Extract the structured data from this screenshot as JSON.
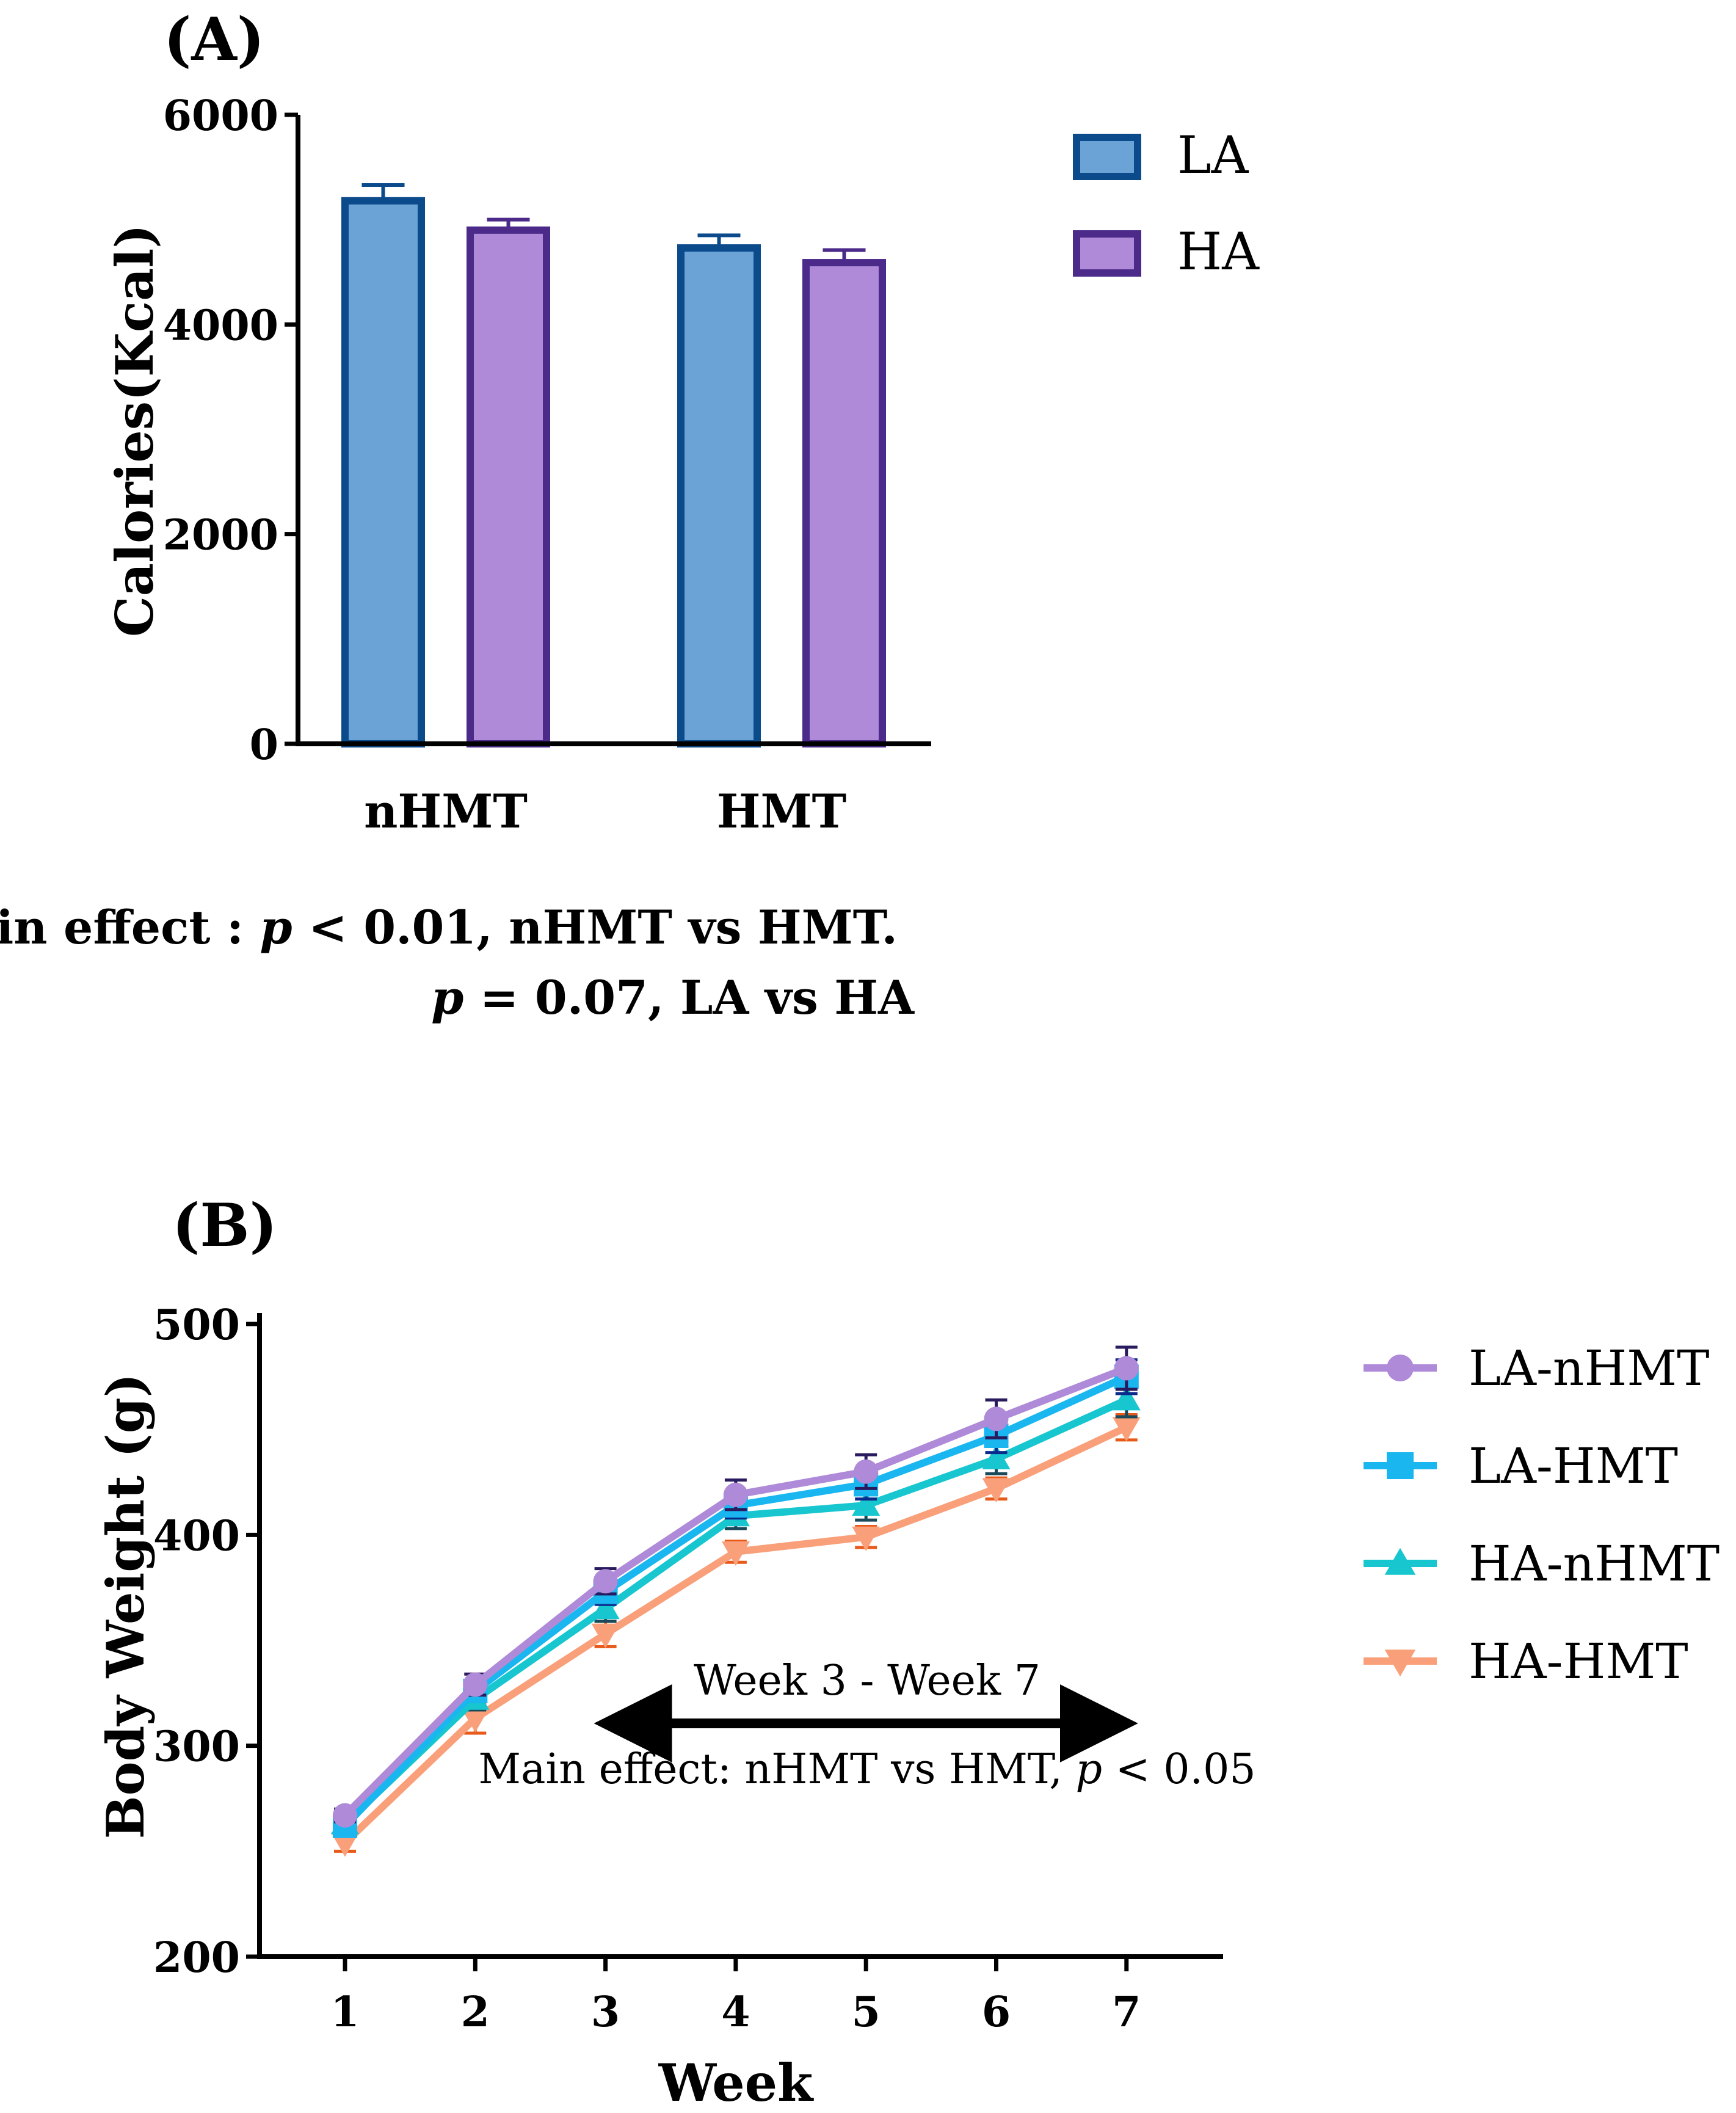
{
  "chart_data": [
    {
      "type": "bar",
      "panel": "(A)",
      "ylabel": "Calories(Kcal)",
      "xlabel": "",
      "ylim": [
        0,
        6000
      ],
      "yticks": [
        0,
        2000,
        4000,
        6000
      ],
      "categories": [
        "nHMT",
        "HMT"
      ],
      "series": [
        {
          "name": "LA",
          "values": [
            5180,
            4730
          ],
          "errors": [
            150,
            120
          ],
          "fill": "#6ba3d6",
          "stroke": "#0b4a8b"
        },
        {
          "name": "HA",
          "values": [
            4900,
            4590
          ],
          "errors": [
            100,
            120
          ],
          "fill": "#ae8ad8",
          "stroke": "#4b2a8a"
        }
      ],
      "legend": "top-right",
      "annotation": {
        "line1_prefix": "Main effect : ",
        "line1_p": "p",
        "line1_rest": " < 0.01, nHMT vs HMT.",
        "line2_p": "p",
        "line2_rest": " = 0.07, LA vs HA"
      }
    },
    {
      "type": "line",
      "panel": "(B)",
      "ylabel": "Body Weight (g)",
      "xlabel": "Week",
      "x": [
        1,
        2,
        3,
        4,
        5,
        6,
        7
      ],
      "xticks": [
        "1",
        "2",
        "3",
        "4",
        "5",
        "6",
        "7"
      ],
      "ylim": [
        200,
        500
      ],
      "yticks": [
        200,
        300,
        400,
        500
      ],
      "series": [
        {
          "name": "LA-nHMT",
          "marker": "circle",
          "color": "#ae8ad8",
          "errcolor": "#2a1a5e",
          "values": [
            267,
            329,
            378,
            419,
            430,
            455,
            479
          ],
          "errors": [
            3,
            5,
            6,
            7,
            8,
            9,
            10
          ]
        },
        {
          "name": "LA-HMT",
          "marker": "square",
          "color": "#1ab6f0",
          "errcolor": "#0b2a8b",
          "values": [
            262,
            326,
            373,
            414,
            424,
            447,
            475
          ],
          "errors": [
            3,
            5,
            6,
            6,
            7,
            8,
            8
          ]
        },
        {
          "name": "HA-nHMT",
          "marker": "triangle-up",
          "color": "#17c6cf",
          "errcolor": "#1a4a5a",
          "values": [
            263,
            322,
            365,
            409,
            414,
            436,
            464
          ],
          "errors": [
            3,
            5,
            6,
            6,
            7,
            7,
            8
          ]
        },
        {
          "name": "HA-HMT",
          "marker": "triangle-down",
          "color": "#f9a07a",
          "errcolor": "#e85a1a",
          "values": [
            254,
            313,
            353,
            392,
            399,
            422,
            451
          ],
          "errors": [
            4,
            7,
            6,
            5,
            5,
            5,
            6
          ]
        }
      ],
      "legend": "right",
      "annotation": {
        "range_label": "Week 3 - Week 7",
        "range_from_week": 3,
        "range_to_week": 7,
        "effect_prefix": "Main effect: nHMT vs HMT, ",
        "effect_p": "p",
        "effect_rest": " < 0.05"
      }
    }
  ]
}
